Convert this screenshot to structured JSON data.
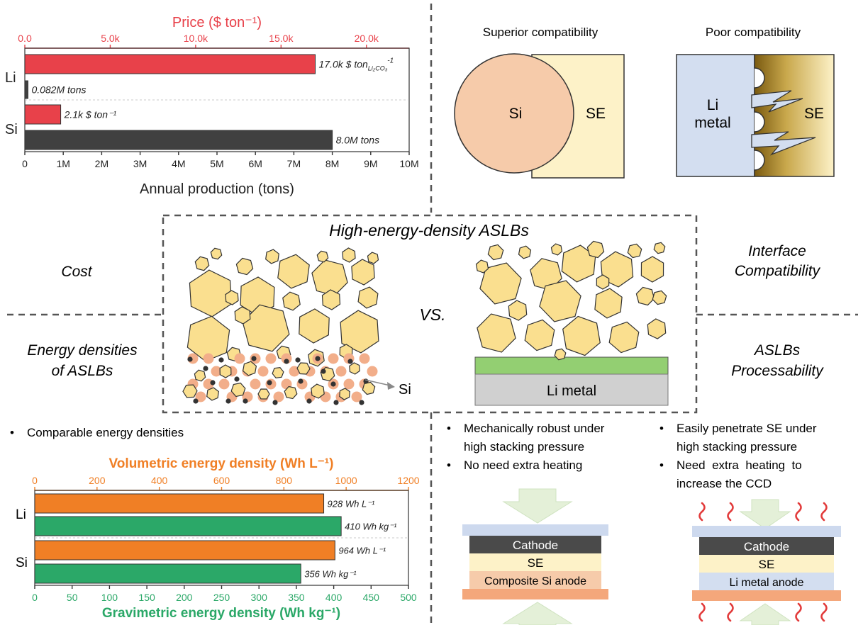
{
  "center": {
    "title": "High-energy-density ASLBs",
    "vs": "VS.",
    "si_label": "Si",
    "li_metal_label": "Li metal"
  },
  "side_labels": {
    "cost": "Cost",
    "interface": [
      "Interface",
      "Compatibility"
    ],
    "energy": [
      "Energy densities",
      "of ASLBs"
    ],
    "processability": [
      "ASLBs",
      "Processability"
    ]
  },
  "compat": {
    "superior_title": "Superior compatibility",
    "poor_title": "Poor compatibility",
    "si": "Si",
    "se": "SE",
    "li_metal": [
      "Li",
      "metal"
    ],
    "se2": "SE"
  },
  "bullets": {
    "energy": [
      "Comparable energy densities"
    ],
    "si_lines": [
      "Mechanically robust under",
      "high stacking pressure",
      "No need extra heating"
    ],
    "li_lines": [
      "Easily penetrate SE under",
      "high stacking pressure",
      "Need  extra  heating  to",
      "increase the CCD"
    ]
  },
  "stacks": {
    "si": {
      "cathode": "Cathode",
      "se": "SE",
      "anode": "Composite Si anode"
    },
    "li": {
      "cathode": "Cathode",
      "se": "SE",
      "anode": "Li metal anode"
    }
  },
  "colors": {
    "red": "#e8414a",
    "dark": "#404040",
    "orange": "#f07f25",
    "green": "#2ba868",
    "hexfill": "#fadf8f",
    "si_particle": "#f2ae8a",
    "se_fill": "#fdf2c8",
    "li_fill": "#d3def0",
    "green_layer": "#93cf72"
  },
  "chart_data": [
    {
      "type": "bar",
      "title": "",
      "top_axis": {
        "label": "Price ($ ton⁻¹)",
        "range": [
          0,
          22500
        ],
        "ticks": [
          "0.0",
          "5.0k",
          "10.0k",
          "15.0k",
          "20.0k"
        ],
        "tick_values": [
          0,
          5000,
          10000,
          15000,
          20000
        ]
      },
      "bottom_axis": {
        "label": "Annual production (tons)",
        "range": [
          0,
          10000000
        ],
        "ticks": [
          "0",
          "1M",
          "2M",
          "3M",
          "4M",
          "5M",
          "6M",
          "7M",
          "8M",
          "9M",
          "10M"
        ],
        "tick_values": [
          0,
          1000000,
          2000000,
          3000000,
          4000000,
          5000000,
          6000000,
          7000000,
          8000000,
          9000000,
          10000000
        ]
      },
      "categories": [
        "Li",
        "Si"
      ],
      "series": [
        {
          "values": [
            17000,
            2100
          ],
          "axis": "top",
          "labels": [
            "17.0k $ ton",
            "2.1k $ ton⁻¹"
          ],
          "color": "#e8414a"
        },
        {
          "values": [
            82000,
            8000000
          ],
          "axis": "bottom",
          "labels": [
            "0.082M tons",
            "8.0M tons"
          ],
          "color": "#404040"
        }
      ],
      "li_price_sub": "Li₂CO₃",
      "li_price_sup": "-1",
      "grid": false,
      "legend": "none"
    },
    {
      "type": "bar",
      "title": "",
      "top_axis": {
        "label": "Volumetric energy density (Wh L⁻¹)",
        "range": [
          0,
          1200
        ],
        "ticks": [
          "0",
          "200",
          "400",
          "600",
          "800",
          "1000",
          "1200"
        ],
        "tick_values": [
          0,
          200,
          400,
          600,
          800,
          1000,
          1200
        ]
      },
      "bottom_axis": {
        "label": "Gravimetric energy density (Wh kg⁻¹)",
        "range": [
          0,
          500
        ],
        "ticks": [
          "0",
          "50",
          "100",
          "150",
          "200",
          "250",
          "300",
          "350",
          "400",
          "450",
          "500"
        ],
        "tick_values": [
          0,
          50,
          100,
          150,
          200,
          250,
          300,
          350,
          400,
          450,
          500
        ]
      },
      "categories": [
        "Li",
        "Si"
      ],
      "series": [
        {
          "values": [
            928,
            964
          ],
          "axis": "top",
          "labels": [
            "928 Wh L⁻¹",
            "964 Wh L⁻¹"
          ],
          "color": "#f07f25"
        },
        {
          "values": [
            410,
            356
          ],
          "axis": "bottom",
          "labels": [
            "410 Wh kg⁻¹",
            "356 Wh kg⁻¹"
          ],
          "color": "#2ba868"
        }
      ],
      "grid": false,
      "legend": "none"
    }
  ]
}
